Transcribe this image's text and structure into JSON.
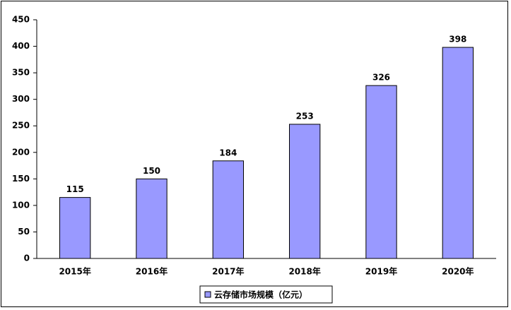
{
  "chart_data": {
    "type": "bar",
    "categories": [
      "2015年",
      "2016年",
      "2017年",
      "2018年",
      "2019年",
      "2020年"
    ],
    "series": [
      {
        "name": "云存储市场规模（亿元）",
        "color": "#9999ff",
        "values": [
          115,
          150,
          184,
          253,
          326,
          398
        ]
      }
    ],
    "ylim": [
      0,
      450
    ],
    "yticks": [
      0,
      50,
      100,
      150,
      200,
      250,
      300,
      350,
      400,
      450
    ],
    "grid": false,
    "legend": "bottom"
  }
}
